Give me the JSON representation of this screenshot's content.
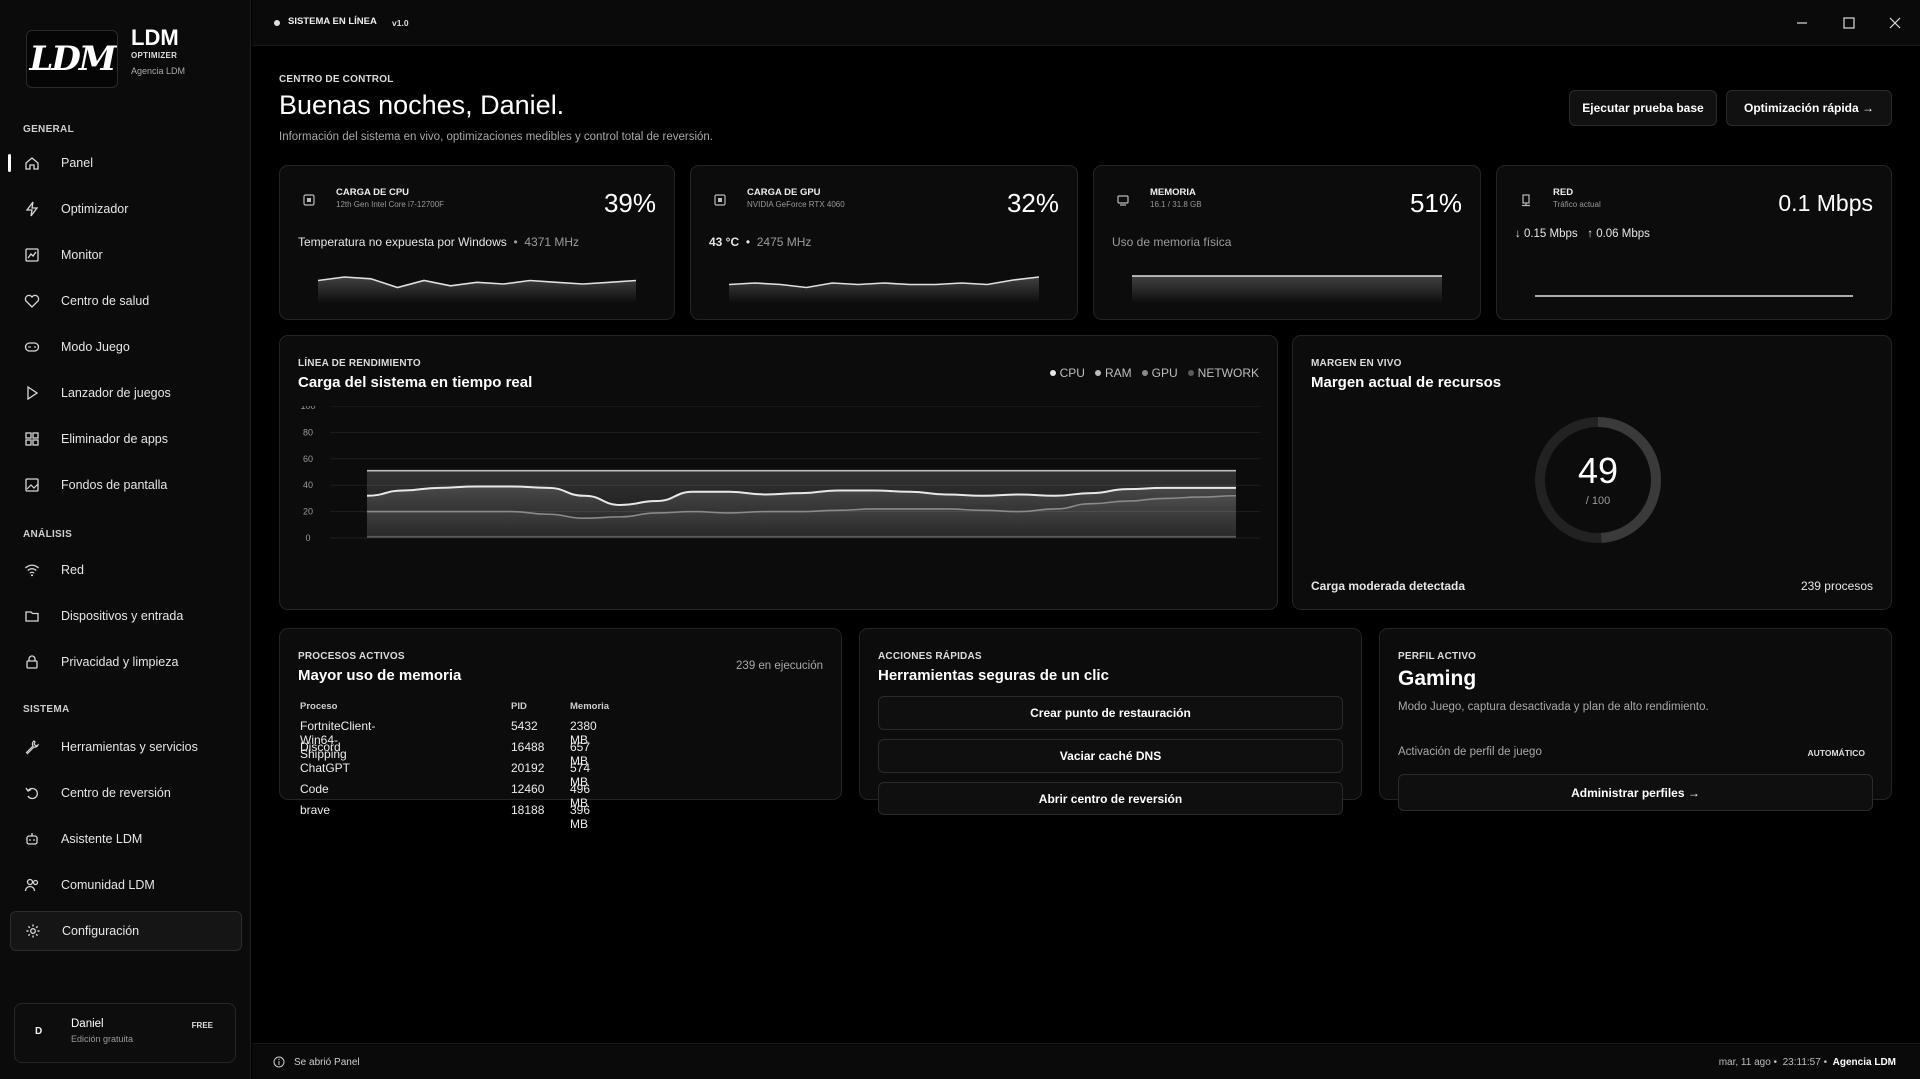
{
  "brand": {
    "logo": "LDM",
    "name": "LDM",
    "subtitle": "OPTIMIZER",
    "agency": "Agencia LDM"
  },
  "sidebar": {
    "sections": {
      "general": "GENERAL",
      "analysis": "ANÁLISIS",
      "system": "SISTEMA"
    },
    "items": [
      {
        "label": "Panel",
        "icon": "home-icon"
      },
      {
        "label": "Optimizador",
        "icon": "bolt-icon"
      },
      {
        "label": "Monitor",
        "icon": "chart-icon"
      },
      {
        "label": "Centro de salud",
        "icon": "heart-pulse-icon"
      },
      {
        "label": "Modo Juego",
        "icon": "gamepad-icon"
      },
      {
        "label": "Lanzador de juegos",
        "icon": "play-icon"
      },
      {
        "label": "Eliminador de apps",
        "icon": "grid-icon"
      },
      {
        "label": "Fondos de pantalla",
        "icon": "image-icon"
      },
      {
        "label": "Red",
        "icon": "wifi-icon"
      },
      {
        "label": "Dispositivos y entrada",
        "icon": "folder-icon"
      },
      {
        "label": "Privacidad y limpieza",
        "icon": "lock-icon"
      },
      {
        "label": "Herramientas y servicios",
        "icon": "wrench-icon"
      },
      {
        "label": "Centro de reversión",
        "icon": "undo-icon"
      },
      {
        "label": "Asistente LDM",
        "icon": "assistant-icon"
      },
      {
        "label": "Comunidad LDM",
        "icon": "users-icon"
      },
      {
        "label": "Configuración",
        "icon": "gear-icon"
      }
    ],
    "user": {
      "avatar": "D",
      "name": "Daniel",
      "edition": "Edición gratuita",
      "badge": "FREE"
    }
  },
  "titlebar": {
    "status": "SISTEMA EN LÍNEA",
    "version": "v1.0"
  },
  "header": {
    "eyebrow": "CENTRO DE CONTROL",
    "title": "Buenas noches, Daniel.",
    "subtitle": "Información del sistema en vivo, optimizaciones medibles y control total de reversión.",
    "btn_baseline": "Ejecutar prueba base",
    "btn_quick": "Optimización rápida →"
  },
  "stats": {
    "cpu": {
      "title": "CARGA DE CPU",
      "subtitle": "12th Gen Intel Core i7-12700F",
      "value": "39%",
      "line": "Temperatura no expuesta por Windows",
      "extra": "4371 MHz",
      "spark": [
        40,
        42,
        41,
        36,
        40,
        37,
        39,
        38,
        40,
        39,
        38,
        39,
        40
      ]
    },
    "gpu": {
      "title": "CARGA DE GPU",
      "subtitle": "NVIDIA GeForce RTX 4060",
      "value": "32%",
      "line": "43 °C",
      "extra": "2475 MHz",
      "spark": [
        30,
        31,
        30,
        28,
        31,
        30,
        31,
        30,
        30,
        31,
        30,
        33,
        35
      ]
    },
    "memory": {
      "title": "MEMORIA",
      "subtitle": "16.1 / 31.8 GB",
      "value": "51%",
      "line": "Uso de memoria física",
      "spark": [
        51,
        51,
        51,
        51,
        51,
        51,
        51
      ]
    },
    "network": {
      "title": "RED",
      "subtitle": "Tráfico actual",
      "value": "0.1 Mbps",
      "down": "↓ 0.15 Mbps",
      "up": "↑ 0.06 Mbps",
      "spark": [
        2,
        2,
        2,
        2,
        2,
        2,
        2
      ]
    }
  },
  "performance": {
    "eyebrow": "LÍNEA DE RENDIMIENTO",
    "title": "Carga del sistema en tiempo real",
    "legend": [
      "CPU",
      "RAM",
      "GPU",
      "NETWORK"
    ],
    "colors": {
      "CPU": "#e8e8e8",
      "RAM": "#bdbdbd",
      "GPU": "#8a8a8a",
      "NETWORK": "#5a5a5a"
    }
  },
  "chart_data": {
    "type": "area",
    "title": "Carga del sistema en tiempo real",
    "ylim": [
      0,
      100
    ],
    "yticks": [
      0,
      20,
      40,
      60,
      80,
      100
    ],
    "series": [
      {
        "name": "RAM",
        "values": [
          51,
          51,
          51,
          51,
          51,
          51,
          51,
          51,
          51,
          51,
          51,
          51,
          51,
          51,
          51,
          51,
          51,
          51,
          51,
          51,
          51,
          51,
          51,
          51,
          51
        ]
      },
      {
        "name": "CPU",
        "values": [
          32,
          36,
          38,
          39,
          39,
          38,
          32,
          25,
          28,
          35,
          35,
          33,
          34,
          36,
          36,
          35,
          33,
          32,
          33,
          32,
          34,
          37,
          38,
          38,
          38
        ]
      },
      {
        "name": "GPU",
        "values": [
          20,
          20,
          20,
          20,
          20,
          18,
          15,
          16,
          19,
          20,
          19,
          20,
          20,
          21,
          22,
          22,
          22,
          21,
          20,
          22,
          26,
          28,
          30,
          31,
          32
        ]
      },
      {
        "name": "NETWORK",
        "values": [
          1,
          1,
          1,
          1,
          1,
          1,
          1,
          1,
          1,
          1,
          1,
          1,
          1,
          1,
          1,
          1,
          1,
          1,
          1,
          1,
          1,
          1,
          1,
          1,
          1
        ]
      }
    ]
  },
  "headroom": {
    "eyebrow": "MARGEN EN VIVO",
    "title": "Margen actual de recursos",
    "value": "49",
    "max": "/ 100",
    "fraction": 0.49,
    "status": "Carga moderada detectada",
    "processes": "239 procesos"
  },
  "processes": {
    "eyebrow": "PROCESOS ACTIVOS",
    "title": "Mayor uso de memoria",
    "running": "239 en ejecución",
    "columns": [
      "Proceso",
      "PID",
      "Memoria"
    ],
    "rows": [
      [
        "FortniteClient-Win64-Shipping",
        "5432",
        "2380 MB"
      ],
      [
        "Discord",
        "16488",
        "657 MB"
      ],
      [
        "ChatGPT",
        "20192",
        "574 MB"
      ],
      [
        "Code",
        "12460",
        "496 MB"
      ],
      [
        "brave",
        "18188",
        "396 MB"
      ]
    ]
  },
  "quick_actions": {
    "eyebrow": "ACCIONES RÁPIDAS",
    "title": "Herramientas seguras de un clic",
    "buttons": [
      "Crear punto de restauración",
      "Vaciar caché DNS",
      "Abrir centro de reversión"
    ]
  },
  "profile": {
    "eyebrow": "PERFIL ACTIVO",
    "name": "Gaming",
    "desc": "Modo Juego, captura desactivada y plan de alto rendimiento.",
    "activation_label": "Activación de perfil de juego",
    "activation_value": "AUTOMÁTICO",
    "manage": "Administrar perfiles →"
  },
  "footer": {
    "message": "Se abrió Panel",
    "date": "mar, 11 ago",
    "time": "23:11:57",
    "agency": "Agencia LDM"
  }
}
